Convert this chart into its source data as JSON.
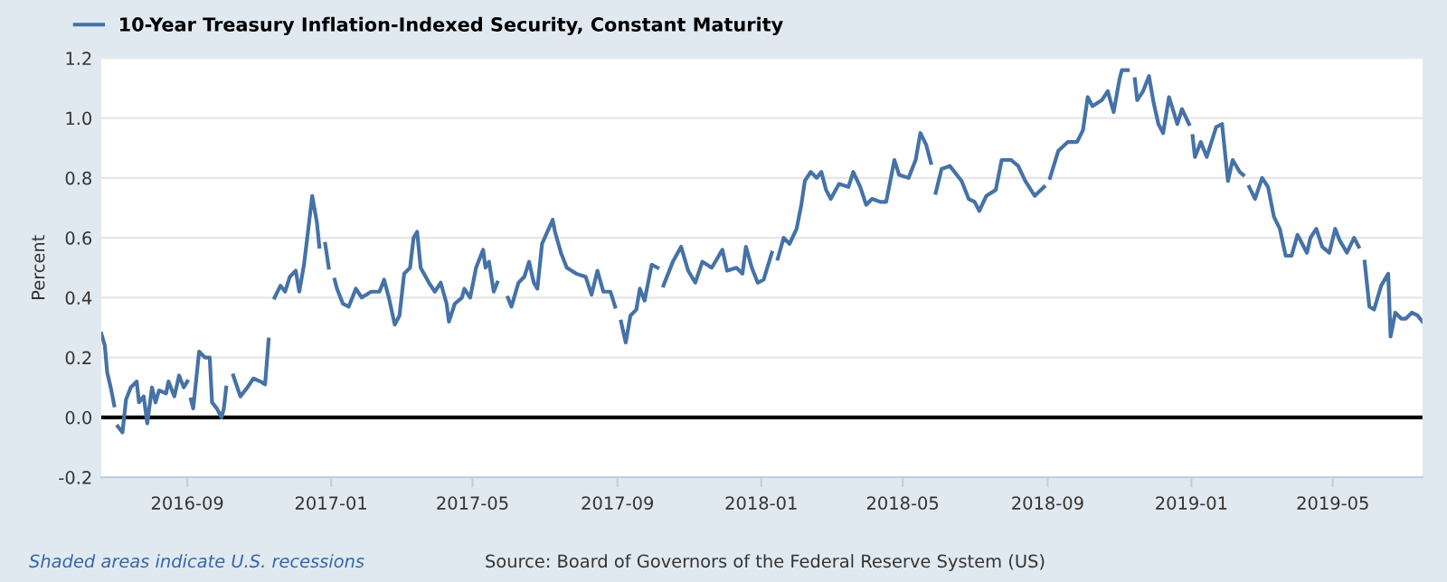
{
  "chart_data": {
    "type": "line",
    "ylabel": "Percent",
    "x": [
      "2016-06-20",
      "2016-06-23",
      "2016-06-25",
      "2016-06-28",
      "2016-07-01",
      "2016-07-02",
      "2016-07-04",
      "2016-07-08",
      "2016-07-11",
      "2016-07-15",
      "2016-07-20",
      "2016-07-22",
      "2016-07-26",
      "2016-07-29",
      "2016-08-02",
      "2016-08-05",
      "2016-08-08",
      "2016-08-14",
      "2016-08-16",
      "2016-08-21",
      "2016-08-25",
      "2016-08-29",
      "2016-09-01",
      "2016-09-02",
      "2016-09-04",
      "2016-09-06",
      "2016-09-11",
      "2016-09-16",
      "2016-09-20",
      "2016-09-22",
      "2016-09-26",
      "2016-09-30",
      "2016-10-02",
      "2016-10-04",
      "2016-10-07",
      "2016-10-10",
      "2016-10-16",
      "2016-10-22",
      "2016-10-27",
      "2016-11-02",
      "2016-11-06",
      "2016-11-09",
      "2016-11-11",
      "2016-11-14",
      "2016-11-19",
      "2016-11-23",
      "2016-11-27",
      "2016-12-02",
      "2016-12-05",
      "2016-12-09",
      "2016-12-16",
      "2016-12-20",
      "2016-12-22",
      "2016-12-24",
      "2016-12-27",
      "2016-12-30",
      "2017-01-02",
      "2017-01-04",
      "2017-01-06",
      "2017-01-11",
      "2017-01-16",
      "2017-01-22",
      "2017-01-27",
      "2017-02-04",
      "2017-02-11",
      "2017-02-15",
      "2017-02-19",
      "2017-02-24",
      "2017-02-28",
      "2017-03-04",
      "2017-03-09",
      "2017-03-12",
      "2017-03-15",
      "2017-03-18",
      "2017-03-25",
      "2017-03-30",
      "2017-04-04",
      "2017-04-09",
      "2017-04-11",
      "2017-04-16",
      "2017-04-22",
      "2017-04-24",
      "2017-04-29",
      "2017-05-04",
      "2017-05-10",
      "2017-05-12",
      "2017-05-15",
      "2017-05-19",
      "2017-05-22",
      "2017-05-27",
      "2017-05-31",
      "2017-06-03",
      "2017-06-09",
      "2017-06-14",
      "2017-06-18",
      "2017-06-22",
      "2017-06-25",
      "2017-06-29",
      "2017-07-08",
      "2017-07-10",
      "2017-07-15",
      "2017-07-20",
      "2017-07-28",
      "2017-08-05",
      "2017-08-10",
      "2017-08-15",
      "2017-08-20",
      "2017-08-26",
      "2017-08-30",
      "2017-09-02",
      "2017-09-04",
      "2017-09-08",
      "2017-09-12",
      "2017-09-17",
      "2017-09-20",
      "2017-09-24",
      "2017-09-30",
      "2017-10-05",
      "2017-10-07",
      "2017-10-10",
      "2017-10-18",
      "2017-10-25",
      "2017-10-31",
      "2017-11-06",
      "2017-11-12",
      "2017-11-20",
      "2017-11-29",
      "2017-12-03",
      "2017-12-11",
      "2017-12-16",
      "2017-12-19",
      "2017-12-24",
      "2017-12-29",
      "2018-01-03",
      "2018-01-10",
      "2018-01-12",
      "2018-01-15",
      "2018-01-20",
      "2018-01-25",
      "2018-01-31",
      "2018-02-04",
      "2018-02-07",
      "2018-02-12",
      "2018-02-17",
      "2018-02-21",
      "2018-02-25",
      "2018-03-01",
      "2018-03-08",
      "2018-03-16",
      "2018-03-20",
      "2018-03-26",
      "2018-03-31",
      "2018-04-05",
      "2018-04-12",
      "2018-04-17",
      "2018-04-24",
      "2018-04-28",
      "2018-05-06",
      "2018-05-12",
      "2018-05-16",
      "2018-05-21",
      "2018-05-25",
      "2018-05-27",
      "2018-05-29",
      "2018-06-03",
      "2018-06-10",
      "2018-06-20",
      "2018-06-26",
      "2018-07-01",
      "2018-07-05",
      "2018-07-11",
      "2018-07-19",
      "2018-07-24",
      "2018-08-01",
      "2018-08-07",
      "2018-08-13",
      "2018-08-21",
      "2018-08-29",
      "2018-08-31",
      "2018-09-03",
      "2018-09-10",
      "2018-09-18",
      "2018-09-26",
      "2018-10-01",
      "2018-10-05",
      "2018-10-09",
      "2018-10-17",
      "2018-10-22",
      "2018-10-27",
      "2018-11-01",
      "2018-11-03",
      "2018-11-08",
      "2018-11-11",
      "2018-11-14",
      "2018-11-16",
      "2018-11-21",
      "2018-11-26",
      "2018-11-30",
      "2018-12-04",
      "2018-12-08",
      "2018-12-13",
      "2018-12-17",
      "2018-12-20",
      "2018-12-24",
      "2018-12-30",
      "2018-12-31",
      "2019-01-02",
      "2019-01-04",
      "2019-01-09",
      "2019-01-14",
      "2019-01-22",
      "2019-01-27",
      "2019-02-01",
      "2019-02-05",
      "2019-02-11",
      "2019-02-14",
      "2019-02-16",
      "2019-02-19",
      "2019-02-24",
      "2019-03-02",
      "2019-03-07",
      "2019-03-12",
      "2019-03-17",
      "2019-03-22",
      "2019-03-27",
      "2019-04-01",
      "2019-04-09",
      "2019-04-12",
      "2019-04-17",
      "2019-04-22",
      "2019-04-28",
      "2019-05-03",
      "2019-05-07",
      "2019-05-13",
      "2019-05-19",
      "2019-05-23",
      "2019-05-25",
      "2019-05-28",
      "2019-06-01",
      "2019-06-05",
      "2019-06-11",
      "2019-06-17",
      "2019-06-19",
      "2019-06-23",
      "2019-06-28",
      "2019-07-02",
      "2019-07-07",
      "2019-07-12",
      "2019-07-16"
    ],
    "series": [
      {
        "name": "10-Year Treasury Inflation-Indexed Security, Constant Maturity",
        "color": "#4572a7",
        "values": [
          0.28,
          0.24,
          0.15,
          0.1,
          0.04,
          null,
          -0.03,
          -0.05,
          0.06,
          0.1,
          0.12,
          0.05,
          0.07,
          -0.02,
          0.1,
          0.05,
          0.09,
          0.08,
          0.12,
          0.07,
          0.14,
          0.1,
          0.12,
          null,
          0.06,
          0.03,
          0.22,
          0.2,
          0.2,
          0.05,
          0.03,
          0.0,
          0.03,
          0.1,
          null,
          0.14,
          0.07,
          0.1,
          0.13,
          0.12,
          0.11,
          0.26,
          null,
          0.4,
          0.44,
          0.42,
          0.47,
          0.49,
          0.42,
          0.51,
          0.74,
          0.65,
          0.57,
          null,
          0.58,
          0.5,
          null,
          0.46,
          0.43,
          0.38,
          0.37,
          0.43,
          0.4,
          0.42,
          0.42,
          0.46,
          0.4,
          0.31,
          0.34,
          0.48,
          0.5,
          0.6,
          0.62,
          0.5,
          0.45,
          0.42,
          0.45,
          0.38,
          0.32,
          0.38,
          0.4,
          0.43,
          0.4,
          0.5,
          0.56,
          0.5,
          0.52,
          0.42,
          0.45,
          null,
          0.4,
          0.37,
          0.45,
          0.47,
          0.52,
          0.45,
          0.43,
          0.58,
          0.66,
          0.62,
          0.55,
          0.5,
          0.48,
          0.47,
          0.41,
          0.49,
          0.42,
          0.42,
          0.37,
          null,
          0.32,
          0.25,
          0.34,
          0.36,
          0.43,
          0.39,
          0.51,
          0.5,
          null,
          0.44,
          0.52,
          0.57,
          0.49,
          0.45,
          0.52,
          0.5,
          0.56,
          0.49,
          0.5,
          0.48,
          0.57,
          0.5,
          0.45,
          0.46,
          0.55,
          null,
          0.53,
          0.6,
          0.58,
          0.63,
          0.71,
          0.79,
          0.82,
          0.8,
          0.82,
          0.76,
          0.73,
          0.78,
          0.77,
          0.82,
          0.77,
          0.71,
          0.73,
          0.72,
          0.72,
          0.86,
          0.81,
          0.8,
          0.86,
          0.95,
          0.91,
          0.85,
          null,
          0.75,
          0.83,
          0.84,
          0.79,
          0.73,
          0.72,
          0.69,
          0.74,
          0.76,
          0.86,
          0.86,
          0.84,
          0.79,
          0.74,
          0.77,
          null,
          0.8,
          0.89,
          0.92,
          0.92,
          0.96,
          1.07,
          1.04,
          1.06,
          1.09,
          1.02,
          1.13,
          1.16,
          1.16,
          null,
          1.13,
          1.06,
          1.09,
          1.14,
          1.05,
          0.98,
          0.95,
          1.07,
          1.02,
          0.98,
          1.03,
          0.98,
          null,
          0.94,
          0.87,
          0.92,
          0.87,
          0.97,
          0.98,
          0.79,
          0.86,
          0.82,
          0.81,
          null,
          0.77,
          0.73,
          0.8,
          0.77,
          0.67,
          0.63,
          0.54,
          0.54,
          0.61,
          0.55,
          0.6,
          0.63,
          0.57,
          0.55,
          0.63,
          0.59,
          0.55,
          0.6,
          0.57,
          null,
          0.52,
          0.37,
          0.36,
          0.44,
          0.48,
          0.27,
          0.35,
          0.33,
          0.33,
          0.35,
          0.34,
          0.32
        ]
      }
    ],
    "xlim": [
      "2016-06-20",
      "2019-07-16"
    ],
    "xticks": [
      {
        "value": "2016-09-01",
        "label": "2016-09"
      },
      {
        "value": "2017-01-01",
        "label": "2017-01"
      },
      {
        "value": "2017-05-01",
        "label": "2017-05"
      },
      {
        "value": "2017-09-01",
        "label": "2017-09"
      },
      {
        "value": "2018-01-01",
        "label": "2018-01"
      },
      {
        "value": "2018-05-01",
        "label": "2018-05"
      },
      {
        "value": "2018-09-01",
        "label": "2018-09"
      },
      {
        "value": "2019-01-01",
        "label": "2019-01"
      },
      {
        "value": "2019-05-01",
        "label": "2019-05"
      }
    ],
    "ylim": [
      -0.2,
      1.2
    ],
    "yticks": [
      {
        "value": -0.2,
        "label": "-0.2"
      },
      {
        "value": 0,
        "label": "0.0"
      },
      {
        "value": 0.2,
        "label": "0.2"
      },
      {
        "value": 0.4,
        "label": "0.4"
      },
      {
        "value": 0.6,
        "label": "0.6"
      },
      {
        "value": 0.8,
        "label": "0.8"
      },
      {
        "value": 1,
        "label": "1.0"
      },
      {
        "value": 1.2,
        "label": "1.2"
      }
    ],
    "ref_lines": [
      {
        "axis": "y",
        "value": 0,
        "color": "#000000"
      }
    ],
    "grid": "y",
    "legend": "top left",
    "marker": "none",
    "line_style": "solid",
    "annotations": [
      "Shaded areas indicate U.S. recessions",
      "Source: Board of Governors of the Federal Reserve System (US)"
    ]
  }
}
